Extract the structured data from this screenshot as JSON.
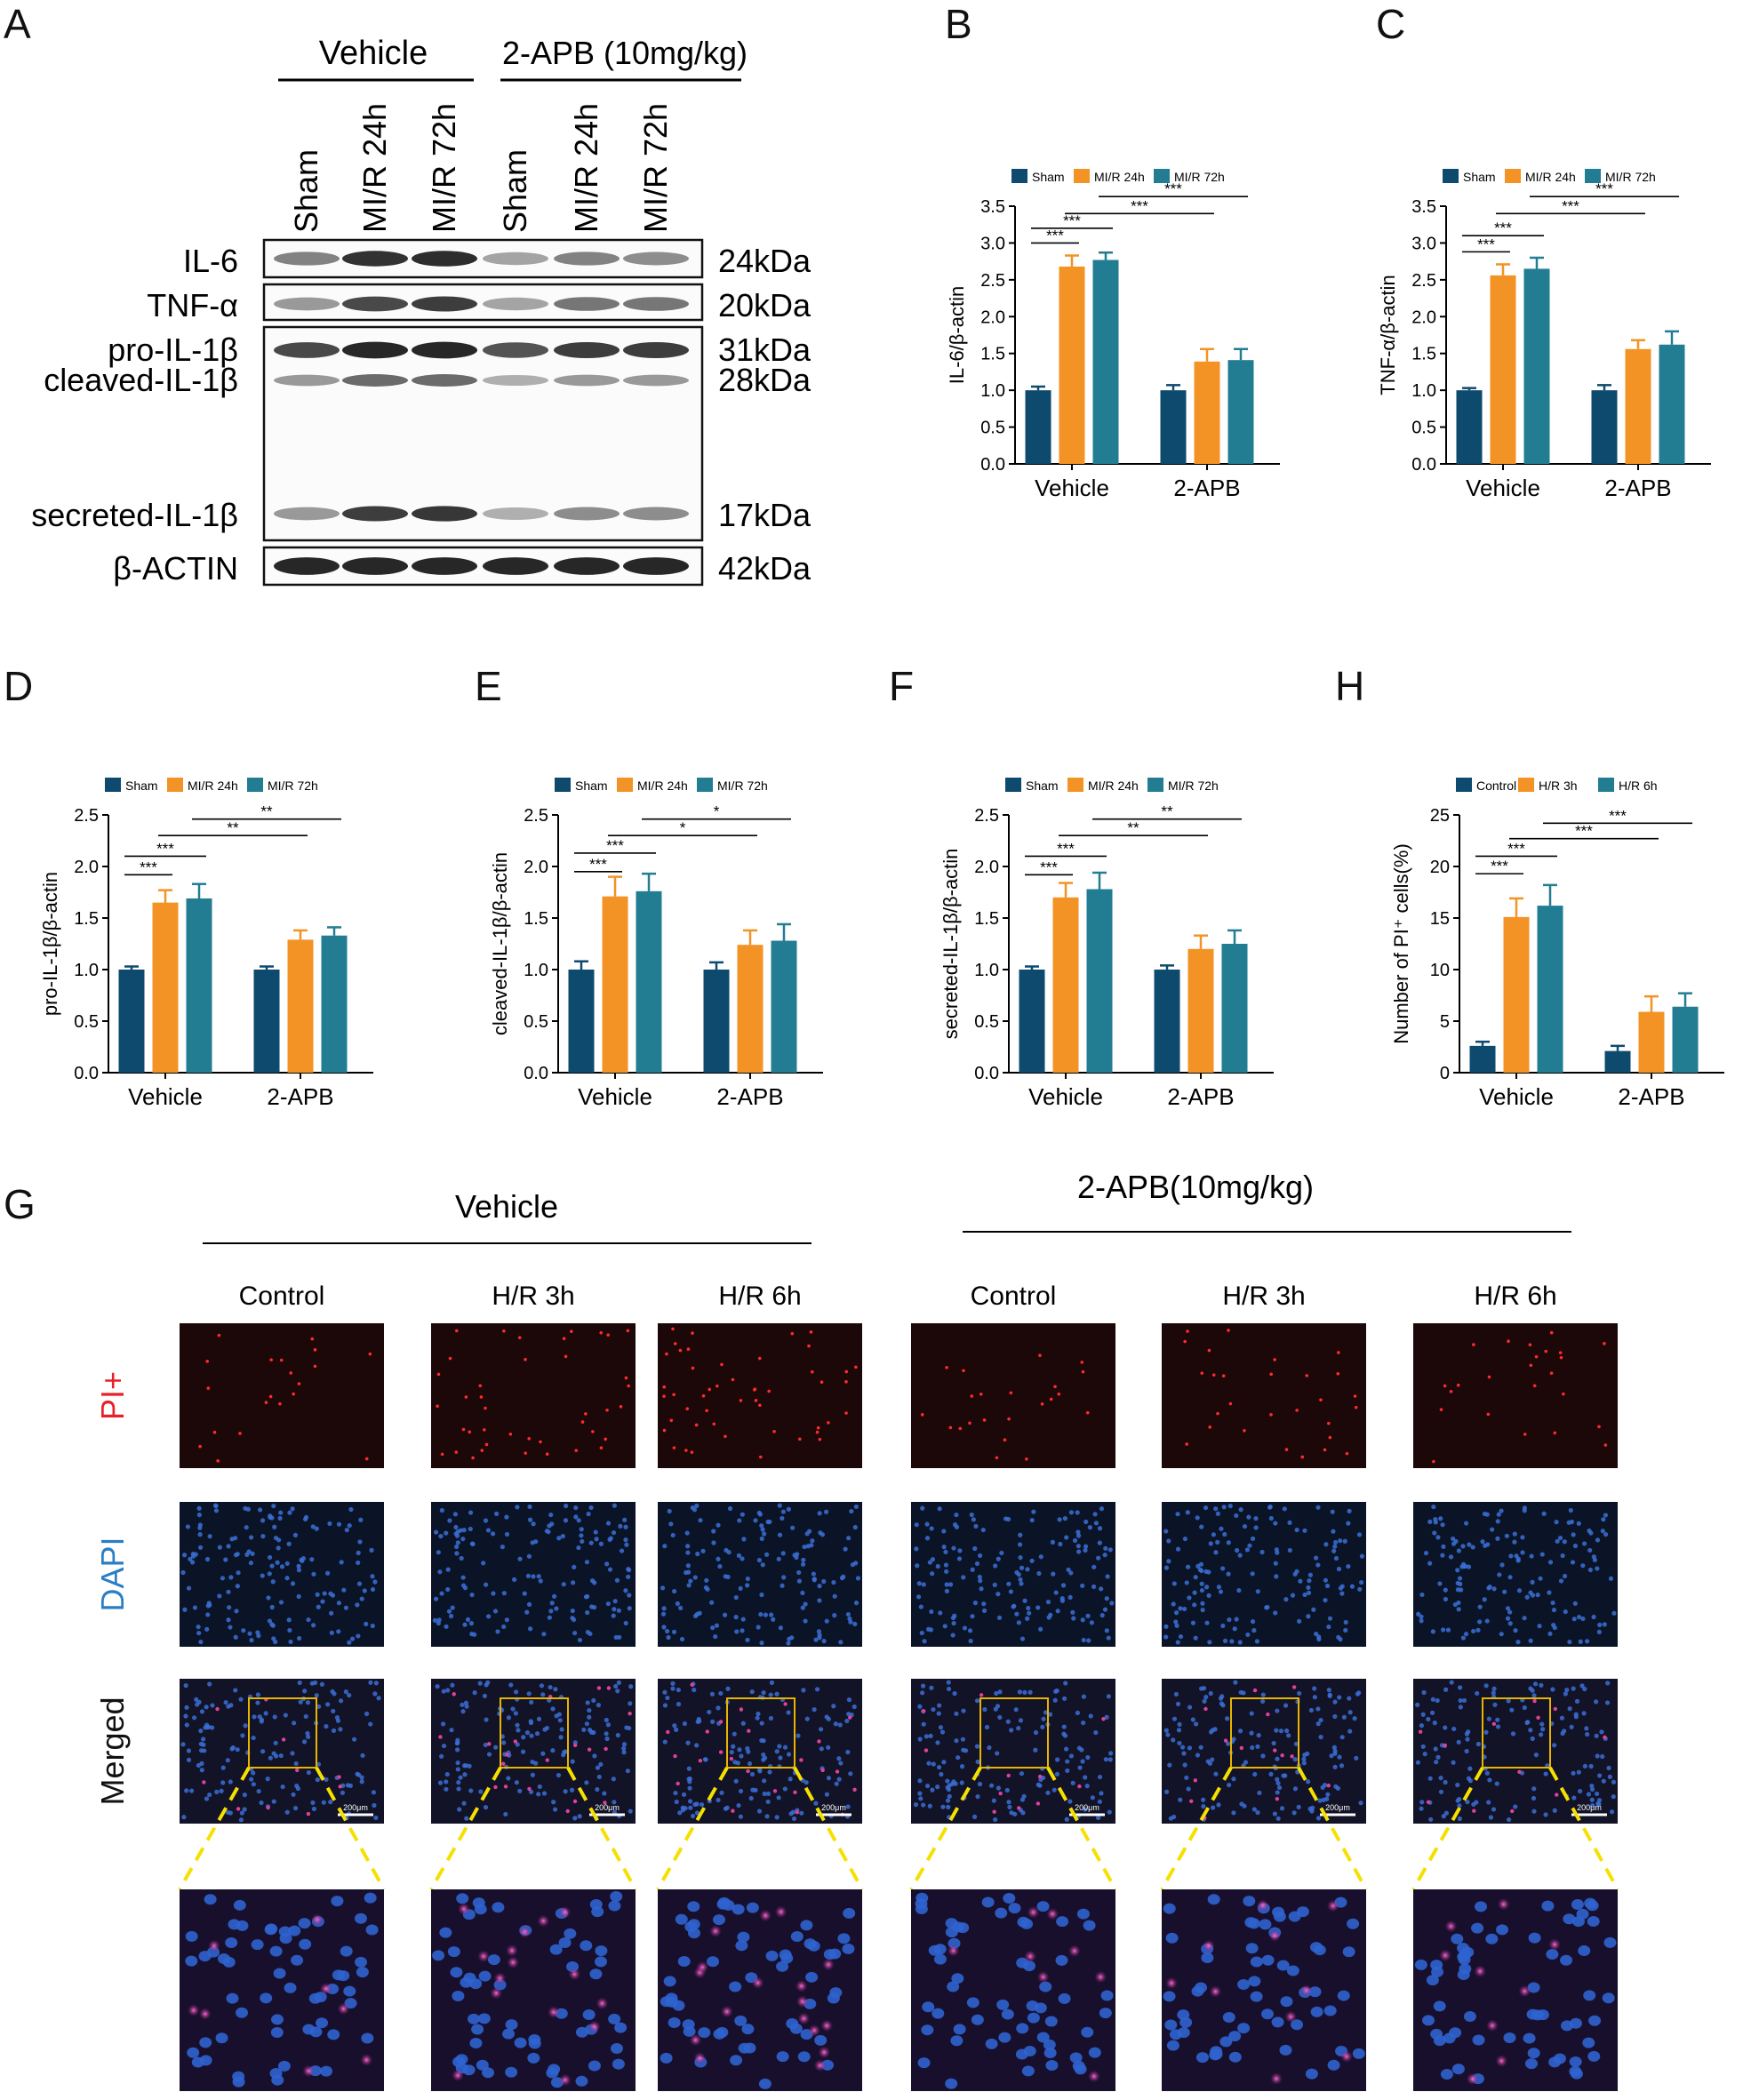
{
  "panels": {
    "A": "A",
    "B": "B",
    "C": "C",
    "D": "D",
    "E": "E",
    "F": "F",
    "G": "G",
    "H": "H"
  },
  "blot": {
    "group_labels": [
      "Vehicle",
      "2-APB (10mg/kg)"
    ],
    "lane_labels": [
      "Sham",
      "MI/R 24h",
      "MI/R 72h",
      "Sham",
      "MI/R 24h",
      "MI/R 72h"
    ],
    "bands": [
      {
        "name": "IL-6",
        "size": "24kDa",
        "intensity": [
          0.55,
          0.9,
          0.92,
          0.4,
          0.55,
          0.5
        ]
      },
      {
        "name": "TNF-α",
        "size": "20kDa",
        "intensity": [
          0.45,
          0.8,
          0.85,
          0.4,
          0.6,
          0.6
        ]
      },
      {
        "name": "pro-IL-1β",
        "size": "31kDa",
        "intensity": [
          0.8,
          0.95,
          0.95,
          0.75,
          0.85,
          0.85
        ]
      },
      {
        "name": "cleaved-IL-1β",
        "size": "28kDa",
        "intensity": [
          0.45,
          0.65,
          0.65,
          0.35,
          0.45,
          0.45
        ]
      },
      {
        "name": "secreted-IL-1β",
        "size": "17kDa",
        "intensity": [
          0.45,
          0.85,
          0.88,
          0.35,
          0.5,
          0.5
        ]
      },
      {
        "name": "β-ACTIN",
        "size": "42kDa",
        "intensity": [
          0.95,
          0.95,
          0.95,
          0.95,
          0.95,
          0.95
        ]
      }
    ]
  },
  "colors": {
    "sham": "#0e4a6e",
    "h24": "#f39325",
    "h72": "#227d93"
  },
  "chart_data": [
    {
      "id": "B",
      "type": "bar",
      "categories": [
        "Vehicle",
        "2-APB"
      ],
      "ylabel": "IL-6/β-actin",
      "ylim": [
        0,
        3.5
      ],
      "yticks": [
        "0.0",
        "0.5",
        "1.0",
        "1.5",
        "2.0",
        "2.5",
        "3.0",
        "3.5"
      ],
      "series": [
        {
          "name": "Sham",
          "values": [
            1.0,
            1.0
          ],
          "err": [
            0.05,
            0.07
          ]
        },
        {
          "name": "MI/R 24h",
          "values": [
            2.68,
            1.39
          ],
          "err": [
            0.15,
            0.17
          ]
        },
        {
          "name": "MI/R 72h",
          "values": [
            2.77,
            1.41
          ],
          "err": [
            0.1,
            0.15
          ]
        }
      ],
      "sig": [
        {
          "label": "***",
          "from": [
            0,
            0
          ],
          "to": [
            0,
            1
          ],
          "level": 3.0
        },
        {
          "label": "***",
          "from": [
            0,
            0
          ],
          "to": [
            0,
            2
          ],
          "level": 3.2
        },
        {
          "label": "***",
          "from": [
            0,
            1
          ],
          "to": [
            1,
            1
          ],
          "level": 3.4
        },
        {
          "label": "***",
          "from": [
            0,
            2
          ],
          "to": [
            1,
            2
          ],
          "level": 3.63
        }
      ]
    },
    {
      "id": "C",
      "type": "bar",
      "categories": [
        "Vehicle",
        "2-APB"
      ],
      "ylabel": "TNF-α/β-actin",
      "ylim": [
        0,
        3.5
      ],
      "yticks": [
        "0.0",
        "0.5",
        "1.0",
        "1.5",
        "2.0",
        "2.5",
        "3.0",
        "3.5"
      ],
      "series": [
        {
          "name": "Sham",
          "values": [
            1.0,
            1.0
          ],
          "err": [
            0.03,
            0.07
          ]
        },
        {
          "name": "MI/R 24h",
          "values": [
            2.56,
            1.56
          ],
          "err": [
            0.15,
            0.12
          ]
        },
        {
          "name": "MI/R 72h",
          "values": [
            2.65,
            1.62
          ],
          "err": [
            0.15,
            0.18
          ]
        }
      ],
      "sig": [
        {
          "label": "***",
          "from": [
            0,
            0
          ],
          "to": [
            0,
            1
          ],
          "level": 2.88
        },
        {
          "label": "***",
          "from": [
            0,
            0
          ],
          "to": [
            0,
            2
          ],
          "level": 3.1
        },
        {
          "label": "***",
          "from": [
            0,
            1
          ],
          "to": [
            1,
            1
          ],
          "level": 3.4
        },
        {
          "label": "***",
          "from": [
            0,
            2
          ],
          "to": [
            1,
            2
          ],
          "level": 3.63
        }
      ]
    },
    {
      "id": "D",
      "type": "bar",
      "categories": [
        "Vehicle",
        "2-APB"
      ],
      "ylabel": "pro-IL-1β/β-actin",
      "ylim": [
        0,
        2.5
      ],
      "yticks": [
        "0.0",
        "0.5",
        "1.0",
        "1.5",
        "2.0",
        "2.5"
      ],
      "series": [
        {
          "name": "Sham",
          "values": [
            1.0,
            1.0
          ],
          "err": [
            0.03,
            0.03
          ]
        },
        {
          "name": "MI/R 24h",
          "values": [
            1.65,
            1.29
          ],
          "err": [
            0.12,
            0.09
          ]
        },
        {
          "name": "MI/R 72h",
          "values": [
            1.69,
            1.33
          ],
          "err": [
            0.14,
            0.08
          ]
        }
      ],
      "sig": [
        {
          "label": "***",
          "from": [
            0,
            0
          ],
          "to": [
            0,
            1
          ],
          "level": 1.92
        },
        {
          "label": "***",
          "from": [
            0,
            0
          ],
          "to": [
            0,
            2
          ],
          "level": 2.1
        },
        {
          "label": "**",
          "from": [
            0,
            1
          ],
          "to": [
            1,
            1
          ],
          "level": 2.3
        },
        {
          "label": "**",
          "from": [
            0,
            2
          ],
          "to": [
            1,
            2
          ],
          "level": 2.46
        }
      ]
    },
    {
      "id": "E",
      "type": "bar",
      "categories": [
        "Vehicle",
        "2-APB"
      ],
      "ylabel": "cleaved-IL-1β/β-actin",
      "ylim": [
        0,
        2.5
      ],
      "yticks": [
        "0.0",
        "0.5",
        "1.0",
        "1.5",
        "2.0",
        "2.5"
      ],
      "series": [
        {
          "name": "Sham",
          "values": [
            1.0,
            1.0
          ],
          "err": [
            0.08,
            0.07
          ]
        },
        {
          "name": "MI/R 24h",
          "values": [
            1.71,
            1.24
          ],
          "err": [
            0.19,
            0.14
          ]
        },
        {
          "name": "MI/R 72h",
          "values": [
            1.76,
            1.28
          ],
          "err": [
            0.17,
            0.16
          ]
        }
      ],
      "sig": [
        {
          "label": "***",
          "from": [
            0,
            0
          ],
          "to": [
            0,
            1
          ],
          "level": 1.95
        },
        {
          "label": "***",
          "from": [
            0,
            0
          ],
          "to": [
            0,
            2
          ],
          "level": 2.13
        },
        {
          "label": "*",
          "from": [
            0,
            1
          ],
          "to": [
            1,
            1
          ],
          "level": 2.3
        },
        {
          "label": "*",
          "from": [
            0,
            2
          ],
          "to": [
            1,
            2
          ],
          "level": 2.46
        }
      ]
    },
    {
      "id": "F",
      "type": "bar",
      "categories": [
        "Vehicle",
        "2-APB"
      ],
      "ylabel": "secreted-IL-1β/β-actin",
      "ylim": [
        0,
        2.5
      ],
      "yticks": [
        "0.0",
        "0.5",
        "1.0",
        "1.5",
        "2.0",
        "2.5"
      ],
      "series": [
        {
          "name": "Sham",
          "values": [
            1.0,
            1.0
          ],
          "err": [
            0.03,
            0.04
          ]
        },
        {
          "name": "MI/R 24h",
          "values": [
            1.7,
            1.2
          ],
          "err": [
            0.14,
            0.13
          ]
        },
        {
          "name": "MI/R 72h",
          "values": [
            1.78,
            1.25
          ],
          "err": [
            0.16,
            0.13
          ]
        }
      ],
      "sig": [
        {
          "label": "***",
          "from": [
            0,
            0
          ],
          "to": [
            0,
            1
          ],
          "level": 1.92
        },
        {
          "label": "***",
          "from": [
            0,
            0
          ],
          "to": [
            0,
            2
          ],
          "level": 2.1
        },
        {
          "label": "**",
          "from": [
            0,
            1
          ],
          "to": [
            1,
            1
          ],
          "level": 2.3
        },
        {
          "label": "**",
          "from": [
            0,
            2
          ],
          "to": [
            1,
            2
          ],
          "level": 2.46
        }
      ]
    },
    {
      "id": "H",
      "type": "bar",
      "categories": [
        "Vehicle",
        "2-APB"
      ],
      "ylabel": "Number of PI⁺ cells(%)",
      "ylim": [
        0,
        25
      ],
      "yticks": [
        "0",
        "5",
        "10",
        "15",
        "20",
        "25"
      ],
      "series": [
        {
          "name": "Control",
          "values": [
            2.6,
            2.1
          ],
          "err": [
            0.4,
            0.5
          ]
        },
        {
          "name": "H/R 3h",
          "values": [
            15.1,
            5.9
          ],
          "err": [
            1.8,
            1.5
          ]
        },
        {
          "name": "H/R 6h",
          "values": [
            16.2,
            6.4
          ],
          "err": [
            2.0,
            1.3
          ]
        }
      ],
      "sig": [
        {
          "label": "***",
          "from": [
            0,
            0
          ],
          "to": [
            0,
            1
          ],
          "level": 19.3
        },
        {
          "label": "***",
          "from": [
            0,
            0
          ],
          "to": [
            0,
            2
          ],
          "level": 21.0
        },
        {
          "label": "***",
          "from": [
            0,
            1
          ],
          "to": [
            1,
            1
          ],
          "level": 22.7
        },
        {
          "label": "***",
          "from": [
            0,
            2
          ],
          "to": [
            1,
            2
          ],
          "level": 24.2
        }
      ]
    }
  ],
  "micro": {
    "group_labels": [
      "Vehicle",
      "2-APB(10mg/kg)"
    ],
    "col_labels": [
      "Control",
      "H/R 3h",
      "H/R 6h",
      "Control",
      "H/R 3h",
      "H/R 6h"
    ],
    "row_labels": [
      "PI+",
      "DAPI",
      "Merged"
    ],
    "row_colors": [
      "#e8202a",
      "#2a7ec4",
      "#111111"
    ],
    "scale_label": "200μm",
    "pi_density": [
      0.25,
      0.75,
      0.95,
      0.3,
      0.45,
      0.35
    ]
  }
}
